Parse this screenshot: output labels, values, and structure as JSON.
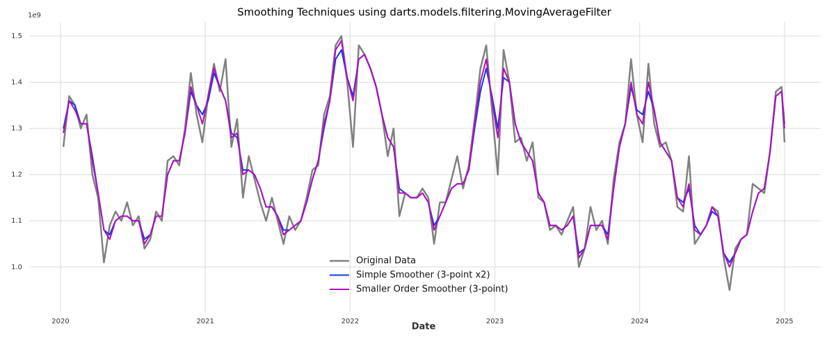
{
  "chart_data": {
    "type": "line",
    "title": "Smoothing Techniques using darts.models.filtering.MovingAverageFilter",
    "x_label": "Date",
    "y_offset_label": "1e9",
    "x": [
      2020.02,
      2020.06,
      2020.1,
      2020.14,
      2020.18,
      2020.22,
      2020.26,
      2020.3,
      2020.34,
      2020.38,
      2020.42,
      2020.46,
      2020.5,
      2020.54,
      2020.58,
      2020.62,
      2020.66,
      2020.7,
      2020.74,
      2020.78,
      2020.82,
      2020.86,
      2020.9,
      2020.94,
      2020.98,
      2021.02,
      2021.06,
      2021.1,
      2021.14,
      2021.18,
      2021.22,
      2021.26,
      2021.3,
      2021.34,
      2021.38,
      2021.42,
      2021.46,
      2021.5,
      2021.54,
      2021.58,
      2021.62,
      2021.66,
      2021.7,
      2021.74,
      2021.78,
      2021.82,
      2021.86,
      2021.9,
      2021.94,
      2021.98,
      2022.02,
      2022.06,
      2022.1,
      2022.14,
      2022.18,
      2022.22,
      2022.26,
      2022.3,
      2022.34,
      2022.38,
      2022.42,
      2022.46,
      2022.5,
      2022.54,
      2022.58,
      2022.62,
      2022.66,
      2022.7,
      2022.74,
      2022.78,
      2022.82,
      2022.86,
      2022.9,
      2022.94,
      2022.98,
      2023.02,
      2023.06,
      2023.1,
      2023.14,
      2023.18,
      2023.22,
      2023.26,
      2023.3,
      2023.34,
      2023.38,
      2023.42,
      2023.46,
      2023.5,
      2023.54,
      2023.58,
      2023.62,
      2023.66,
      2023.7,
      2023.74,
      2023.78,
      2023.82,
      2023.86,
      2023.9,
      2023.94,
      2023.98,
      2024.02,
      2024.06,
      2024.1,
      2024.14,
      2024.18,
      2024.22,
      2024.26,
      2024.3,
      2024.34,
      2024.38,
      2024.42,
      2024.46,
      2024.5,
      2024.54,
      2024.58,
      2024.62,
      2024.66,
      2024.7,
      2024.74,
      2024.78,
      2024.82,
      2024.86,
      2024.9,
      2024.94,
      2024.98,
      2025.0
    ],
    "series": [
      {
        "name": "Original Data",
        "color": "#808080",
        "width": 2.5,
        "values": [
          1.26,
          1.37,
          1.35,
          1.3,
          1.33,
          1.2,
          1.15,
          1.01,
          1.09,
          1.12,
          1.1,
          1.14,
          1.09,
          1.11,
          1.04,
          1.06,
          1.12,
          1.1,
          1.23,
          1.24,
          1.22,
          1.3,
          1.42,
          1.33,
          1.27,
          1.37,
          1.44,
          1.38,
          1.45,
          1.26,
          1.32,
          1.15,
          1.24,
          1.19,
          1.14,
          1.1,
          1.15,
          1.1,
          1.05,
          1.11,
          1.08,
          1.1,
          1.15,
          1.21,
          1.22,
          1.33,
          1.37,
          1.48,
          1.5,
          1.4,
          1.26,
          1.48,
          1.46,
          1.43,
          1.39,
          1.33,
          1.24,
          1.3,
          1.11,
          1.16,
          1.15,
          1.15,
          1.17,
          1.15,
          1.05,
          1.14,
          1.14,
          1.19,
          1.24,
          1.17,
          1.22,
          1.32,
          1.43,
          1.48,
          1.34,
          1.2,
          1.47,
          1.4,
          1.27,
          1.28,
          1.23,
          1.27,
          1.15,
          1.14,
          1.08,
          1.09,
          1.07,
          1.1,
          1.13,
          1.0,
          1.04,
          1.13,
          1.08,
          1.1,
          1.05,
          1.19,
          1.27,
          1.31,
          1.45,
          1.33,
          1.27,
          1.44,
          1.31,
          1.26,
          1.27,
          1.23,
          1.13,
          1.12,
          1.24,
          1.05,
          1.07,
          1.09,
          1.13,
          1.12,
          1.02,
          0.95,
          1.04,
          1.06,
          1.07,
          1.18,
          1.17,
          1.16,
          1.25,
          1.38,
          1.39,
          1.27
        ]
      },
      {
        "name": "Simple Smoother (3-point x2)",
        "color": "#0b3be6",
        "width": 2,
        "values": [
          1.3,
          1.36,
          1.35,
          1.31,
          1.31,
          1.24,
          1.16,
          1.08,
          1.07,
          1.1,
          1.11,
          1.11,
          1.1,
          1.1,
          1.06,
          1.07,
          1.11,
          1.11,
          1.2,
          1.23,
          1.23,
          1.29,
          1.38,
          1.35,
          1.33,
          1.36,
          1.42,
          1.39,
          1.36,
          1.29,
          1.28,
          1.21,
          1.21,
          1.2,
          1.17,
          1.13,
          1.13,
          1.11,
          1.08,
          1.08,
          1.09,
          1.1,
          1.14,
          1.19,
          1.23,
          1.3,
          1.36,
          1.45,
          1.47,
          1.41,
          1.37,
          1.45,
          1.46,
          1.43,
          1.39,
          1.33,
          1.28,
          1.26,
          1.17,
          1.16,
          1.15,
          1.15,
          1.16,
          1.14,
          1.09,
          1.11,
          1.14,
          1.17,
          1.18,
          1.18,
          1.21,
          1.3,
          1.38,
          1.43,
          1.37,
          1.3,
          1.41,
          1.4,
          1.31,
          1.27,
          1.25,
          1.23,
          1.16,
          1.14,
          1.09,
          1.09,
          1.08,
          1.09,
          1.11,
          1.03,
          1.04,
          1.09,
          1.09,
          1.09,
          1.07,
          1.17,
          1.26,
          1.31,
          1.39,
          1.34,
          1.33,
          1.38,
          1.34,
          1.27,
          1.25,
          1.23,
          1.15,
          1.14,
          1.17,
          1.09,
          1.07,
          1.09,
          1.12,
          1.11,
          1.03,
          1.01,
          1.03,
          1.06,
          1.07,
          1.12,
          1.16,
          1.17,
          1.25,
          1.37,
          1.38,
          1.31
        ]
      },
      {
        "name": "Smaller Order Smoother (3-point)",
        "color": "#b00fc0",
        "width": 2,
        "values": [
          1.29,
          1.36,
          1.34,
          1.31,
          1.31,
          1.23,
          1.16,
          1.08,
          1.06,
          1.1,
          1.11,
          1.11,
          1.1,
          1.1,
          1.05,
          1.07,
          1.11,
          1.11,
          1.2,
          1.23,
          1.23,
          1.29,
          1.39,
          1.35,
          1.31,
          1.37,
          1.43,
          1.39,
          1.36,
          1.28,
          1.29,
          1.2,
          1.21,
          1.2,
          1.17,
          1.13,
          1.13,
          1.11,
          1.07,
          1.08,
          1.09,
          1.1,
          1.14,
          1.19,
          1.23,
          1.31,
          1.36,
          1.47,
          1.49,
          1.41,
          1.36,
          1.45,
          1.46,
          1.43,
          1.39,
          1.33,
          1.28,
          1.26,
          1.16,
          1.16,
          1.15,
          1.15,
          1.16,
          1.14,
          1.08,
          1.11,
          1.14,
          1.17,
          1.18,
          1.18,
          1.21,
          1.31,
          1.4,
          1.45,
          1.36,
          1.28,
          1.43,
          1.4,
          1.31,
          1.27,
          1.25,
          1.23,
          1.16,
          1.14,
          1.09,
          1.09,
          1.08,
          1.09,
          1.11,
          1.02,
          1.04,
          1.09,
          1.09,
          1.09,
          1.06,
          1.17,
          1.26,
          1.31,
          1.4,
          1.33,
          1.31,
          1.4,
          1.34,
          1.27,
          1.25,
          1.23,
          1.15,
          1.13,
          1.18,
          1.08,
          1.07,
          1.09,
          1.13,
          1.11,
          1.03,
          1.0,
          1.03,
          1.06,
          1.07,
          1.12,
          1.16,
          1.17,
          1.25,
          1.37,
          1.38,
          1.3
        ]
      }
    ],
    "xlim": [
      2019.784,
      2025.25
    ],
    "ylim": [
      0.902,
      1.53
    ],
    "xticks": [
      2020,
      2021,
      2022,
      2023,
      2024,
      2025
    ],
    "yticks": [
      {
        "value": 1,
        "label": "1.0"
      },
      1.1,
      1.2,
      1.3,
      1.4,
      1.5
    ],
    "grid": true,
    "legend_loc": "lower center"
  }
}
